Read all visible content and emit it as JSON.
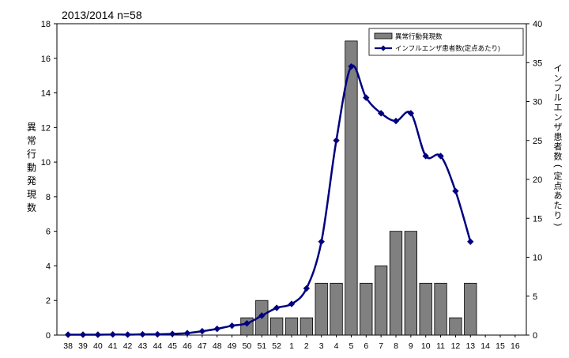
{
  "chart_data": {
    "type": "bar+line",
    "title": "2013/2014 n=58",
    "categories": [
      "38",
      "39",
      "40",
      "41",
      "42",
      "43",
      "44",
      "45",
      "46",
      "47",
      "48",
      "49",
      "50",
      "51",
      "52",
      "1",
      "2",
      "3",
      "4",
      "5",
      "6",
      "7",
      "8",
      "9",
      "10",
      "11",
      "12",
      "13",
      "14",
      "15",
      "16"
    ],
    "series": [
      {
        "name": "異常行動発現数",
        "type": "bar",
        "axis": "left",
        "color": "#808080",
        "values": [
          0,
          0,
          0,
          0,
          0,
          0,
          0,
          0,
          0,
          0,
          0,
          0,
          1,
          2,
          1,
          1,
          1,
          3,
          3,
          17,
          3,
          4,
          6,
          6,
          3,
          3,
          1,
          3,
          0,
          0,
          0
        ]
      },
      {
        "name": "インフルエンザ患者数(定点あたり)",
        "type": "line",
        "axis": "right",
        "color": "#000080",
        "marker": "diamond",
        "values": [
          0.05,
          0.05,
          0.05,
          0.08,
          0.06,
          0.1,
          0.1,
          0.15,
          0.25,
          0.5,
          0.8,
          1.2,
          1.5,
          2.5,
          3.5,
          4.0,
          6.0,
          12.0,
          25.0,
          34.5,
          30.5,
          28.5,
          27.5,
          28.5,
          23.0,
          23.0,
          18.5,
          12.0,
          null,
          null,
          null
        ]
      }
    ],
    "left_axis": {
      "label": "異常行動発現数",
      "min": 0,
      "max": 18,
      "ticks": [
        0,
        2,
        4,
        6,
        8,
        10,
        12,
        14,
        16,
        18
      ]
    },
    "right_axis": {
      "label": "インフルエンザ患者数(定点あたり)",
      "min": 0,
      "max": 40,
      "ticks": [
        0,
        5,
        10,
        15,
        20,
        25,
        30,
        35,
        40
      ]
    },
    "legend_position": "top-right",
    "grid": false
  }
}
